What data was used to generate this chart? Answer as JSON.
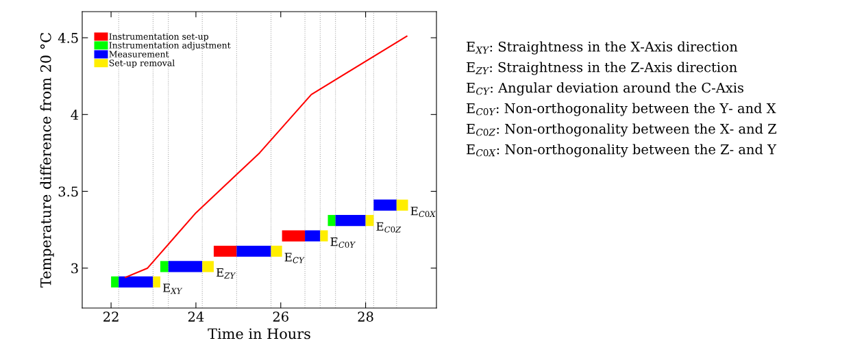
{
  "chart_data": {
    "type": "bar",
    "orientation": "horizontal",
    "x": [
      2.91,
      3.01,
      3.11,
      3.21,
      3.31,
      3.41
    ],
    "xlabel": "Time in Hours",
    "ylabel": "Temperature difference from 20 °C",
    "series": [
      {
        "name": "Instrumentation set-up",
        "color": "#ff0000",
        "base": [
          null,
          null,
          24.42,
          26.03,
          null,
          null
        ],
        "values": [
          null,
          null,
          0.54,
          0.54,
          null,
          null
        ]
      },
      {
        "name": "Instrumentation adjustment",
        "color": "#00ff00",
        "base": [
          22.0,
          23.16,
          null,
          null,
          27.11,
          null
        ],
        "values": [
          0.18,
          0.19,
          null,
          null,
          0.18,
          null
        ]
      },
      {
        "name": "Measurement",
        "color": "#0000ff",
        "base": [
          22.18,
          23.35,
          24.96,
          26.57,
          27.29,
          28.19
        ],
        "values": [
          0.81,
          0.8,
          0.81,
          0.36,
          0.71,
          0.54
        ]
      },
      {
        "name": "Set-up removal",
        "color": "#ffee00",
        "base": [
          22.99,
          24.15,
          25.77,
          26.93,
          28.0,
          28.73
        ],
        "values": [
          0.17,
          0.27,
          0.26,
          0.18,
          0.19,
          0.27
        ]
      },
      {
        "type": "line",
        "color": "#ff0000",
        "x": [
          2.94,
          3.0,
          3.36,
          3.75,
          4.13,
          4.51
        ],
        "values": [
          22.34,
          22.86,
          24.0,
          25.5,
          26.72,
          28.97
        ]
      }
    ],
    "xlim": [
      21.32,
      29.67
    ],
    "ylim": [
      2.74,
      4.67
    ],
    "xticks": [
      22,
      24,
      26,
      28
    ],
    "yticks": [
      3,
      {
        "value": 3.5,
        "label": "3.5"
      },
      4,
      {
        "value": 4.5,
        "label": "4.5"
      }
    ],
    "grid": false,
    "legend": "top left",
    "ref_lines": [
      {
        "axis": "x",
        "value": 22.18,
        "color": "#aaaaaa",
        "line_style": "dotted"
      },
      {
        "axis": "x",
        "value": 22.99,
        "color": "#aaaaaa",
        "line_style": "dotted"
      },
      {
        "axis": "x",
        "value": 23.35,
        "color": "#aaaaaa",
        "line_style": "dotted"
      },
      {
        "axis": "x",
        "value": 24.15,
        "color": "#aaaaaa",
        "line_style": "dotted"
      },
      {
        "axis": "x",
        "value": 24.96,
        "color": "#aaaaaa",
        "line_style": "dotted"
      },
      {
        "axis": "x",
        "value": 25.77,
        "color": "#aaaaaa",
        "line_style": "dotted"
      },
      {
        "axis": "x",
        "value": 26.57,
        "color": "#aaaaaa",
        "line_style": "dotted"
      },
      {
        "axis": "x",
        "value": 26.93,
        "color": "#aaaaaa",
        "line_style": "dotted"
      },
      {
        "axis": "x",
        "value": 27.29,
        "color": "#aaaaaa",
        "line_style": "dotted"
      },
      {
        "axis": "x",
        "value": 28.0,
        "color": "#aaaaaa",
        "line_style": "dotted"
      },
      {
        "axis": "x",
        "value": 28.19,
        "color": "#aaaaaa",
        "line_style": "dotted"
      },
      {
        "axis": "x",
        "value": 28.73,
        "color": "#aaaaaa",
        "line_style": "dotted"
      }
    ],
    "annotations": [
      "E$_{XY}$",
      "E$_{ZY}$",
      "E$_{CY}$",
      "E$_{C0Y}$",
      "E$_{C0Z}$",
      "E$_{C0X}$",
      "E$_{XY}$: Straightness in the X-Axis direction",
      "E$_{ZY}$: Straightness in the Z-Axis direction",
      "E$_{CY}$: Angular deviation around the C-Axis",
      "E$_{C0Y}$: Non-orthogonality between the Y- and X",
      "E$_{C0Z}$: Non-orthogonality between the X- and Z",
      "E$_{C0X}$: Non-orthogonality between the Z- and Y"
    ]
  }
}
